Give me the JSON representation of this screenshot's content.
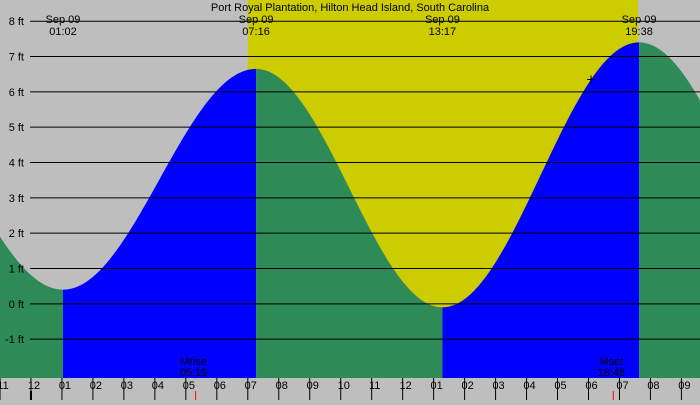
{
  "chart_data": {
    "type": "area",
    "title": "Port Royal Plantation, Hilton Head Island, South Carolina",
    "xlabel": "",
    "ylabel": "",
    "ylim": [
      -2.1,
      8.6
    ],
    "grid": true,
    "y_ticks": [
      8,
      7,
      6,
      5,
      4,
      3,
      2,
      1,
      0,
      -1
    ],
    "y_tick_labels": [
      "8 ft",
      "7 ft",
      "6 ft",
      "5 ft",
      "4 ft",
      "3 ft",
      "2 ft",
      "1 ft",
      "0 ft",
      "-1 ft"
    ],
    "x_hour_range": [
      -1,
      21.6
    ],
    "x_ticks": [
      {
        "label": "11",
        "hour": -1
      },
      {
        "label": "12",
        "hour": 0
      },
      {
        "label": "01",
        "hour": 1
      },
      {
        "label": "02",
        "hour": 2
      },
      {
        "label": "03",
        "hour": 3
      },
      {
        "label": "04",
        "hour": 4
      },
      {
        "label": "05",
        "hour": 5
      },
      {
        "label": "06",
        "hour": 6
      },
      {
        "label": "07",
        "hour": 7
      },
      {
        "label": "08",
        "hour": 8
      },
      {
        "label": "09",
        "hour": 9
      },
      {
        "label": "10",
        "hour": 10
      },
      {
        "label": "11",
        "hour": 11
      },
      {
        "label": "12",
        "hour": 12
      },
      {
        "label": "01",
        "hour": 13
      },
      {
        "label": "02",
        "hour": 14
      },
      {
        "label": "03",
        "hour": 15
      },
      {
        "label": "04",
        "hour": 16
      },
      {
        "label": "05",
        "hour": 17
      },
      {
        "label": "06",
        "hour": 18
      },
      {
        "label": "07",
        "hour": 19
      },
      {
        "label": "08",
        "hour": 20
      },
      {
        "label": "09",
        "hour": 21
      }
    ],
    "tide_extremes": [
      {
        "date": "Sep 09",
        "time": "01:02",
        "hour": 1.033,
        "height": 0.4
      },
      {
        "date": "Sep 09",
        "time": "07:16",
        "hour": 7.267,
        "height": 6.65
      },
      {
        "date": "Sep 09",
        "time": "13:17",
        "hour": 13.283,
        "height": -0.1
      },
      {
        "date": "Sep 09",
        "time": "19:38",
        "hour": 19.633,
        "height": 7.4
      }
    ],
    "daylight": {
      "start_hour": 7.0,
      "end_hour": 19.6
    },
    "moon_events": [
      {
        "label": "Mrise",
        "time": "05:19",
        "hour": 5.317
      },
      {
        "label": "Mset",
        "time": "18:48",
        "hour": 18.8
      }
    ],
    "colors": {
      "night": "#bebebe",
      "day": "#cccc00",
      "rising": "#0000ff",
      "falling": "#2e8b57",
      "grid": "#000000",
      "moon_tick": "#ff0000",
      "midnight_tick": "#000000"
    }
  }
}
